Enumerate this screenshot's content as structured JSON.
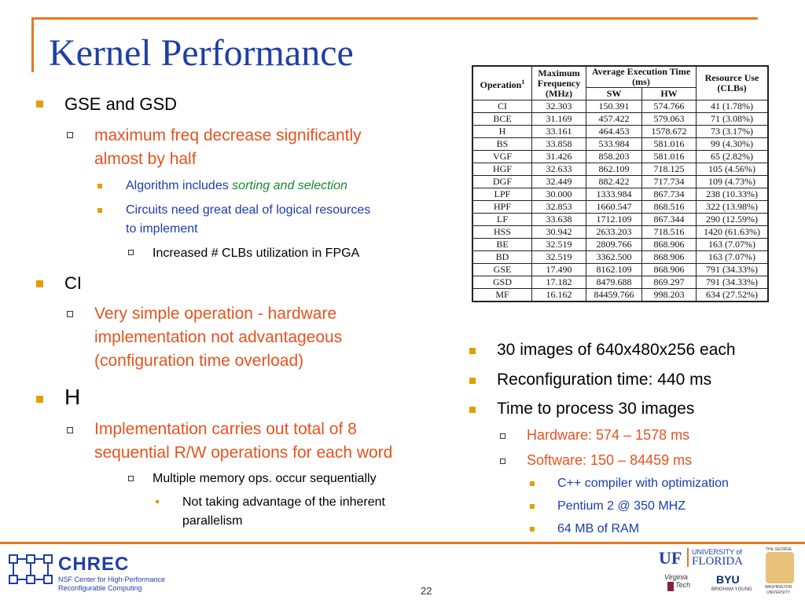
{
  "title": "Kernel Performance",
  "left": {
    "b1": "GSE and GSD",
    "b1_1": "maximum freq decrease significantly",
    "b1_1b": "almost by half",
    "b1_1_1_pre": "Algorithm includes ",
    "b1_1_1_it": "sorting and selection",
    "b1_1_2": "Circuits need great deal of logical resources",
    "b1_1_2b": "to implement",
    "b1_1_2_1": "Increased # CLBs utilization in FPGA",
    "b2": "CI",
    "b2_1": "Very simple operation - hardware",
    "b2_1b": "implementation not advantageous",
    "b2_1c": "(configuration time overload)",
    "b3": "H",
    "b3_1": "Implementation carries out total of 8",
    "b3_1b": "sequential R/W operations for each word",
    "b3_1_1": "Multiple memory ops. occur sequentially",
    "b3_1_1_1": "Not taking advantage of the inherent",
    "b3_1_1_1b": "parallelism"
  },
  "right": {
    "r1": "30 images of 640x480x256 each",
    "r2": "Reconfiguration time: 440 ms",
    "r3": "Time to process 30 images",
    "r3_1": "Hardware: 574 – 1578 ms",
    "r3_2": "Software: 150 – 84459 ms",
    "r3_2_1": "C++ compiler with optimization",
    "r3_2_2": "Pentium 2 @ 350 MHZ",
    "r3_2_3": "64 MB of RAM"
  },
  "table": {
    "h_op": "Operation",
    "h_op_sup": "1",
    "h_freq": "Maximum Frequency (MHz)",
    "h_avg": "Average Execution Time (ms)",
    "h_sw": "SW",
    "h_hw": "HW",
    "h_res": "Resource Use (CLBs)",
    "rows": [
      [
        "CI",
        "32.303",
        "150.391",
        "574.766",
        "41 (1.78%)"
      ],
      [
        "BCE",
        "31.169",
        "457.422",
        "579.063",
        "71 (3.08%)"
      ],
      [
        "H",
        "33.161",
        "464.453",
        "1578.672",
        "73 (3.17%)"
      ],
      [
        "BS",
        "33.858",
        "533.984",
        "581.016",
        "99 (4.30%)"
      ],
      [
        "VGF",
        "31.426",
        "858.203",
        "581.016",
        "65 (2.82%)"
      ],
      [
        "HGF",
        "32.633",
        "862.109",
        "718.125",
        "105 (4.56%)"
      ],
      [
        "DGF",
        "32.449",
        "882.422",
        "717.734",
        "109 (4.73%)"
      ],
      [
        "LPF",
        "30.000",
        "1333.984",
        "867.734",
        "238 (10.33%)"
      ],
      [
        "HPF",
        "32.853",
        "1660.547",
        "868.516",
        "322 (13.98%)"
      ],
      [
        "LF",
        "33.638",
        "1712.109",
        "867.344",
        "290 (12.59%)"
      ],
      [
        "HSS",
        "30.942",
        "2633.203",
        "718.516",
        "1420 (61.63%)"
      ],
      [
        "BE",
        "32.519",
        "2809.766",
        "868.906",
        "163 (7.07%)"
      ],
      [
        "BD",
        "32.519",
        "3362.500",
        "868.906",
        "163 (7.07%)"
      ],
      [
        "GSE",
        "17.490",
        "8162.109",
        "868.906",
        "791 (34.33%)"
      ],
      [
        "GSD",
        "17.182",
        "8479.688",
        "869.297",
        "791 (34.33%)"
      ],
      [
        "MF",
        "16.162",
        "84459.766",
        "998.203",
        "634 (27.52%)"
      ]
    ]
  },
  "footer": {
    "page": "22",
    "chrec": "CHREC",
    "chrec_sub1": "NSF Center for High-Performance",
    "chrec_sub2": "Reconfigurable Computing",
    "uf": "UF",
    "uni_of": "UNIVERSITY of",
    "florida": "FLORIDA",
    "byu": "BYU",
    "byu_sub": "BRIGHAM YOUNG",
    "vt1": "Virginia",
    "vt2": "Tech",
    "gw1": "THE GEORGE",
    "gw2": "WASHINGTON",
    "gw3": "UNIVERSITY"
  },
  "colors": {
    "accent": "#e87722",
    "title": "#1f3fa6",
    "level2": "#e8521e",
    "level3": "#1a3cb0",
    "bullet": "#e0a000"
  }
}
